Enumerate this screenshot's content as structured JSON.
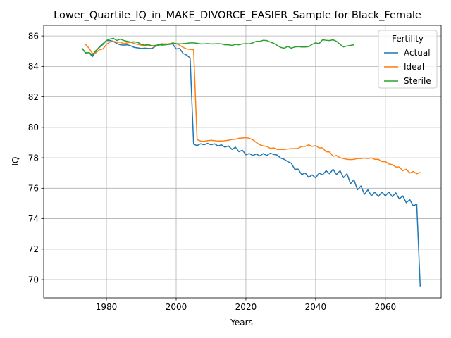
{
  "chart_data": {
    "type": "line",
    "title": "Lower_Quartile_IQ_in_MAKE_DIVORCE_EASIER_Sample for Black_Female",
    "xlabel": "Years",
    "ylabel": "IQ",
    "xlim": [
      1962,
      2076
    ],
    "ylim": [
      68.8,
      86.7
    ],
    "xticks": [
      1980,
      2000,
      2020,
      2040,
      2060
    ],
    "yticks": [
      70,
      72,
      74,
      76,
      78,
      80,
      82,
      84,
      86
    ],
    "grid": true,
    "legend": {
      "title": "Fertility",
      "placement": "top-right"
    },
    "series": [
      {
        "name": "Actual",
        "color": "#1f77b4",
        "x": [
          1973,
          1974,
          1975,
          1976,
          1977,
          1978,
          1979,
          1980,
          1981,
          1982,
          1983,
          1984,
          1985,
          1986,
          1987,
          1988,
          1989,
          1990,
          1991,
          1992,
          1993,
          1994,
          1995,
          1996,
          1997,
          1998,
          1999,
          2000,
          2001,
          2002,
          2003,
          2004,
          2005,
          2006,
          2007,
          2008,
          2009,
          2010,
          2011,
          2012,
          2013,
          2014,
          2015,
          2016,
          2017,
          2018,
          2019,
          2020,
          2021,
          2022,
          2023,
          2024,
          2025,
          2026,
          2027,
          2028,
          2029,
          2030,
          2031,
          2032,
          2033,
          2034,
          2035,
          2036,
          2037,
          2038,
          2039,
          2040,
          2041,
          2042,
          2043,
          2044,
          2045,
          2046,
          2047,
          2048,
          2049,
          2050,
          2051,
          2052,
          2053,
          2054,
          2055,
          2056,
          2057,
          2058,
          2059,
          2060,
          2061,
          2062,
          2063,
          2064,
          2065,
          2066,
          2067,
          2068,
          2069,
          2070
        ],
        "y": [
          85.2,
          84.9,
          84.9,
          84.65,
          85.0,
          85.3,
          85.5,
          85.7,
          85.7,
          85.65,
          85.5,
          85.42,
          85.4,
          85.42,
          85.35,
          85.25,
          85.22,
          85.18,
          85.2,
          85.18,
          85.18,
          85.3,
          85.4,
          85.45,
          85.48,
          85.45,
          85.48,
          85.15,
          85.18,
          84.85,
          84.75,
          84.55,
          78.9,
          78.8,
          78.92,
          78.85,
          78.95,
          78.85,
          78.92,
          78.78,
          78.85,
          78.7,
          78.78,
          78.55,
          78.7,
          78.4,
          78.5,
          78.2,
          78.28,
          78.15,
          78.25,
          78.12,
          78.28,
          78.15,
          78.3,
          78.22,
          78.18,
          77.98,
          77.9,
          77.75,
          77.65,
          77.25,
          77.25,
          76.9,
          77.0,
          76.72,
          76.88,
          76.68,
          77.0,
          76.88,
          77.15,
          76.95,
          77.25,
          76.9,
          77.15,
          76.7,
          76.95,
          76.3,
          76.55,
          75.9,
          76.15,
          75.6,
          75.9,
          75.5,
          75.75,
          75.45,
          75.75,
          75.5,
          75.75,
          75.45,
          75.7,
          75.3,
          75.5,
          75.05,
          75.25,
          74.85,
          74.95,
          69.55
        ]
      },
      {
        "name": "Ideal",
        "color": "#ff7f0e",
        "x": [
          1974,
          1975,
          1976,
          1977,
          1978,
          1979,
          1980,
          1981,
          1982,
          1983,
          1984,
          1985,
          1986,
          1987,
          1988,
          1989,
          1990,
          1991,
          1992,
          1993,
          1994,
          1995,
          1996,
          1997,
          1998,
          1999,
          2000,
          2001,
          2002,
          2003,
          2004,
          2005,
          2006,
          2007,
          2008,
          2009,
          2010,
          2011,
          2012,
          2013,
          2014,
          2015,
          2016,
          2017,
          2018,
          2019,
          2020,
          2021,
          2022,
          2023,
          2024,
          2025,
          2026,
          2027,
          2028,
          2029,
          2030,
          2031,
          2032,
          2033,
          2034,
          2035,
          2036,
          2037,
          2038,
          2039,
          2040,
          2041,
          2042,
          2043,
          2044,
          2045,
          2046,
          2047,
          2048,
          2049,
          2050,
          2051,
          2052,
          2053,
          2054,
          2055,
          2056,
          2057,
          2058,
          2059,
          2060,
          2061,
          2062,
          2063,
          2064,
          2065,
          2066,
          2067,
          2068,
          2069,
          2070
        ],
        "y": [
          85.45,
          85.2,
          84.85,
          84.9,
          85.1,
          85.15,
          85.45,
          85.6,
          85.65,
          85.58,
          85.6,
          85.5,
          85.55,
          85.6,
          85.5,
          85.45,
          85.4,
          85.35,
          85.4,
          85.35,
          85.3,
          85.45,
          85.5,
          85.45,
          85.5,
          85.52,
          85.5,
          85.4,
          85.25,
          85.15,
          85.12,
          85.1,
          79.2,
          79.1,
          79.08,
          79.12,
          79.15,
          79.12,
          79.1,
          79.1,
          79.12,
          79.15,
          79.2,
          79.22,
          79.28,
          79.3,
          79.32,
          79.28,
          79.18,
          79.0,
          78.85,
          78.78,
          78.75,
          78.62,
          78.65,
          78.55,
          78.55,
          78.55,
          78.58,
          78.6,
          78.6,
          78.62,
          78.75,
          78.75,
          78.85,
          78.75,
          78.8,
          78.65,
          78.65,
          78.4,
          78.38,
          78.1,
          78.15,
          78.0,
          77.95,
          77.9,
          77.88,
          77.9,
          77.95,
          77.95,
          77.98,
          77.95,
          78.0,
          77.9,
          77.9,
          77.75,
          77.75,
          77.6,
          77.55,
          77.4,
          77.4,
          77.15,
          77.25,
          77.0,
          77.1,
          76.95,
          77.05
        ]
      },
      {
        "name": "Sterile",
        "color": "#2ca02c",
        "x": [
          1973,
          1974,
          1975,
          1976,
          1977,
          1978,
          1979,
          1980,
          1981,
          1982,
          1983,
          1984,
          1985,
          1986,
          1987,
          1988,
          1989,
          1990,
          1991,
          1992,
          1993,
          1994,
          1995,
          1996,
          1997,
          1998,
          1999,
          2000,
          2001,
          2002,
          2003,
          2004,
          2005,
          2006,
          2007,
          2008,
          2009,
          2010,
          2011,
          2012,
          2013,
          2014,
          2015,
          2016,
          2017,
          2018,
          2019,
          2020,
          2021,
          2022,
          2023,
          2024,
          2025,
          2026,
          2027,
          2028,
          2029,
          2030,
          2031,
          2032,
          2033,
          2034,
          2035,
          2036,
          2037,
          2038,
          2039,
          2040,
          2041,
          2042,
          2043,
          2044,
          2045,
          2046,
          2047,
          2048,
          2049,
          2050,
          2051
        ],
        "y": [
          85.2,
          84.88,
          84.92,
          84.75,
          85.05,
          85.25,
          85.45,
          85.7,
          85.8,
          85.85,
          85.7,
          85.8,
          85.7,
          85.65,
          85.6,
          85.62,
          85.58,
          85.45,
          85.4,
          85.45,
          85.35,
          85.38,
          85.42,
          85.4,
          85.42,
          85.45,
          85.55,
          85.5,
          85.48,
          85.5,
          85.52,
          85.55,
          85.55,
          85.52,
          85.48,
          85.48,
          85.5,
          85.48,
          85.48,
          85.5,
          85.48,
          85.42,
          85.42,
          85.38,
          85.45,
          85.42,
          85.48,
          85.5,
          85.48,
          85.55,
          85.65,
          85.65,
          85.72,
          85.7,
          85.6,
          85.52,
          85.38,
          85.25,
          85.2,
          85.32,
          85.2,
          85.28,
          85.3,
          85.28,
          85.28,
          85.3,
          85.45,
          85.55,
          85.5,
          85.75,
          85.72,
          85.7,
          85.75,
          85.65,
          85.45,
          85.28,
          85.35,
          85.38,
          85.42
        ]
      }
    ]
  }
}
